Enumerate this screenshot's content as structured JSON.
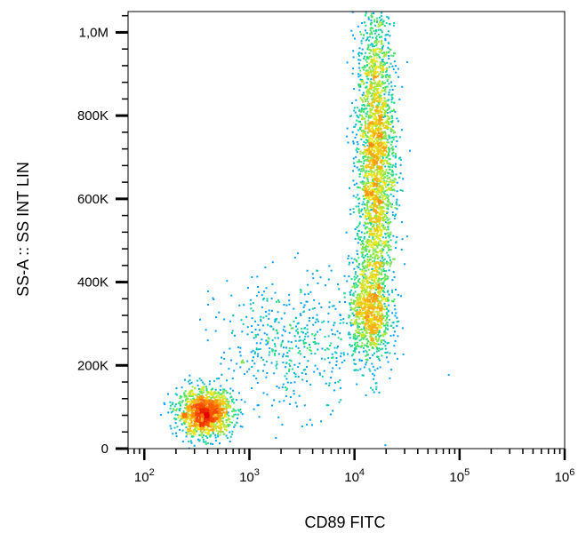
{
  "chart_data": {
    "type": "scatter",
    "subtype": "flow-cytometry-density-dot-plot",
    "title": "",
    "xlabel": "CD89 FITC",
    "ylabel": "SS-A :: SS INT LIN",
    "x_scale": "log",
    "y_scale": "linear",
    "xlim": [
      70,
      1000000
    ],
    "ylim": [
      0,
      1050000
    ],
    "x_ticks": [
      {
        "value": 100,
        "base": "10",
        "exp": "2"
      },
      {
        "value": 1000,
        "base": "10",
        "exp": "3"
      },
      {
        "value": 10000,
        "base": "10",
        "exp": "4"
      },
      {
        "value": 100000,
        "base": "10",
        "exp": "5"
      },
      {
        "value": 1000000,
        "base": "10",
        "exp": "6"
      }
    ],
    "y_ticks": [
      {
        "value": 0,
        "label": "0"
      },
      {
        "value": 200000,
        "label": "200K"
      },
      {
        "value": 400000,
        "label": "400K"
      },
      {
        "value": 600000,
        "label": "600K"
      },
      {
        "value": 800000,
        "label": "800K"
      },
      {
        "value": 1000000,
        "label": "1,0M"
      }
    ],
    "grid": false,
    "legend": "none",
    "color_scale": [
      "#0a1bd6",
      "#00a8ff",
      "#1fe07a",
      "#e8e81a",
      "#ff7a00",
      "#e60000"
    ],
    "populations": [
      {
        "x_center": 380,
        "y_center": 85000,
        "x_log_spread": 0.13,
        "y_spread": 28000,
        "events": 1400,
        "peak_density": "red"
      },
      {
        "x_center": 16000,
        "y_center": 700000,
        "x_log_spread": 0.09,
        "y_spread": 190000,
        "events": 2600,
        "peak_density": "green-yellow"
      },
      {
        "x_center": 14000,
        "y_center": 330000,
        "x_log_spread": 0.1,
        "y_spread": 60000,
        "events": 900,
        "peak_density": "cyan"
      },
      {
        "x_center": 2500,
        "y_center": 250000,
        "x_log_spread": 0.35,
        "y_spread": 80000,
        "events": 500,
        "peak_density": "blue"
      }
    ]
  }
}
